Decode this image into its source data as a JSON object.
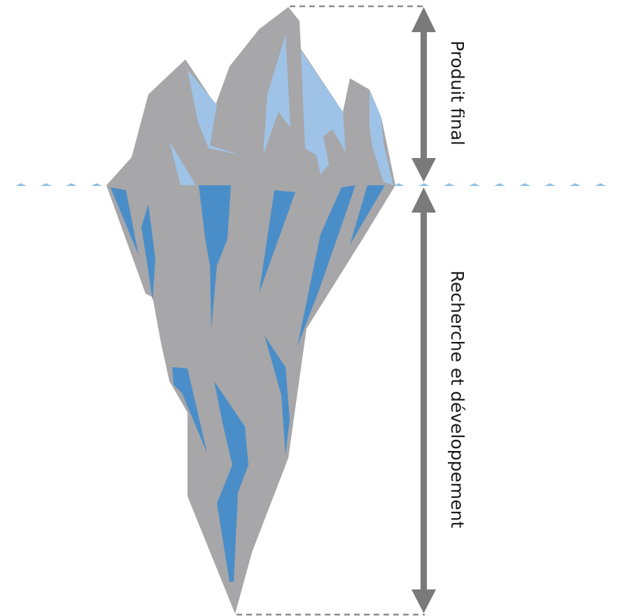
{
  "labels": {
    "top_section": "Produit final",
    "bottom_section": "Recherche et développement"
  },
  "colors": {
    "ice_grey": "#a7a6a8",
    "ice_light_blue": "#9fc3e7",
    "ice_deep_blue": "#4a8ec9",
    "arrow_grey": "#7a7a7a",
    "guide_dash": "#8c8c8c",
    "waterline": "#8fc1e6"
  }
}
